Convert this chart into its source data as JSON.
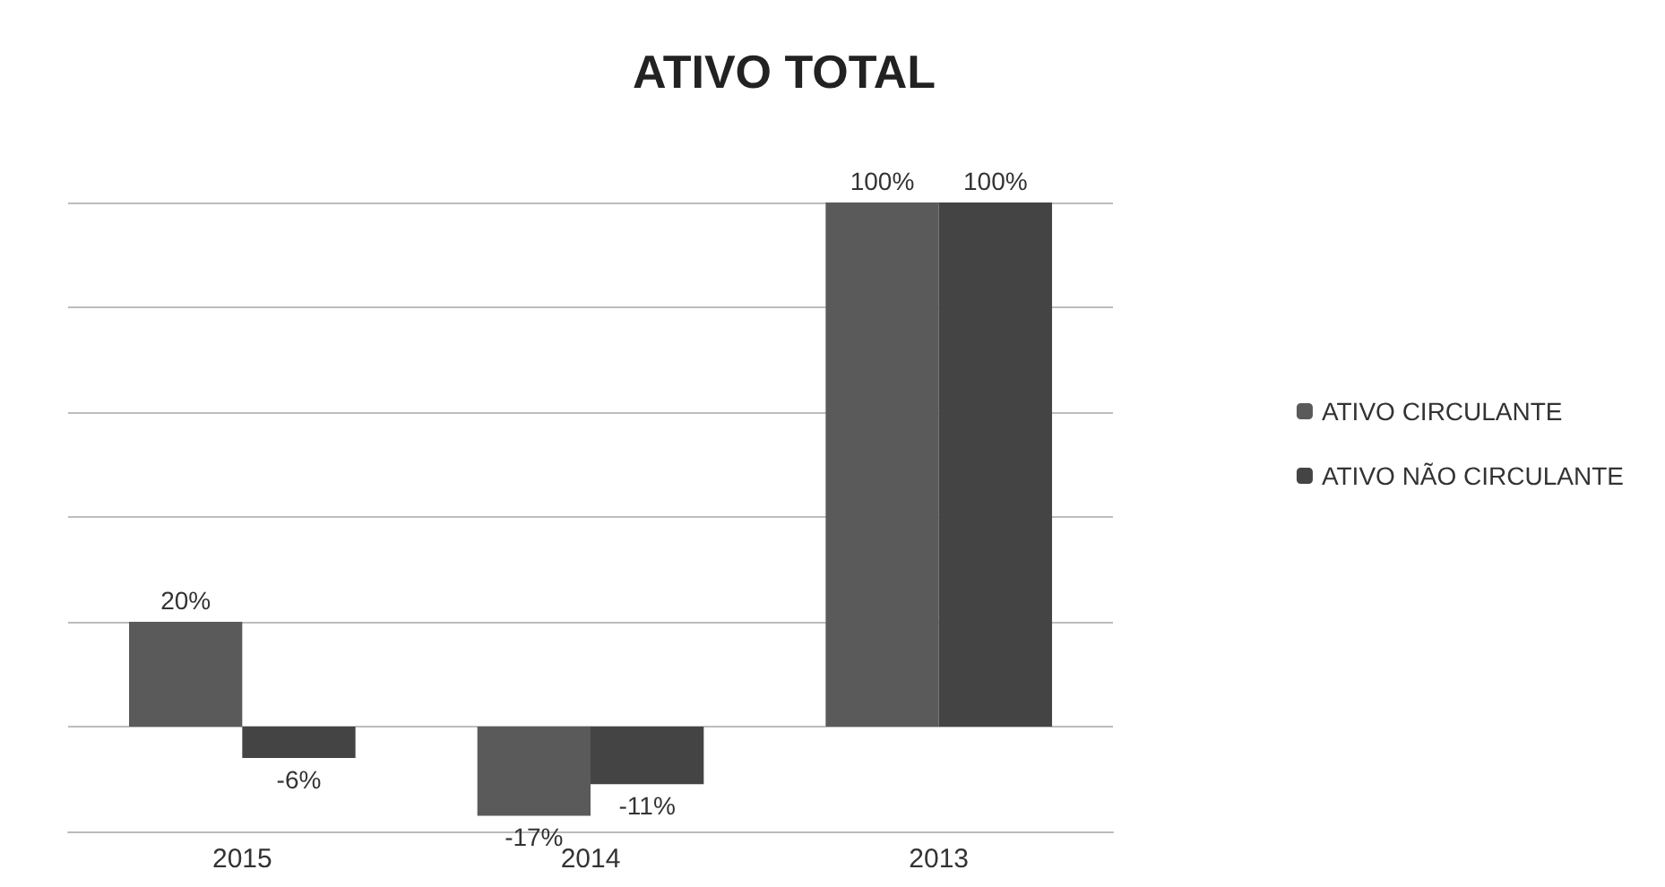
{
  "chart_data": {
    "type": "bar",
    "title": "ATIVO TOTAL",
    "categories": [
      "2015",
      "2014",
      "2013"
    ],
    "series": [
      {
        "name": "ATIVO CIRCULANTE",
        "color": "#5a5a5a",
        "values": [
          20,
          -17,
          100
        ],
        "value_labels": [
          "20%",
          "-17%",
          "100%"
        ]
      },
      {
        "name": "ATIVO NÃO CIRCULANTE",
        "color": "#444444",
        "values": [
          -6,
          -11,
          100
        ],
        "value_labels": [
          "-6%",
          "-11%",
          "100%"
        ]
      }
    ],
    "tick_labels": "x",
    "grid": "y",
    "legend": "right"
  }
}
